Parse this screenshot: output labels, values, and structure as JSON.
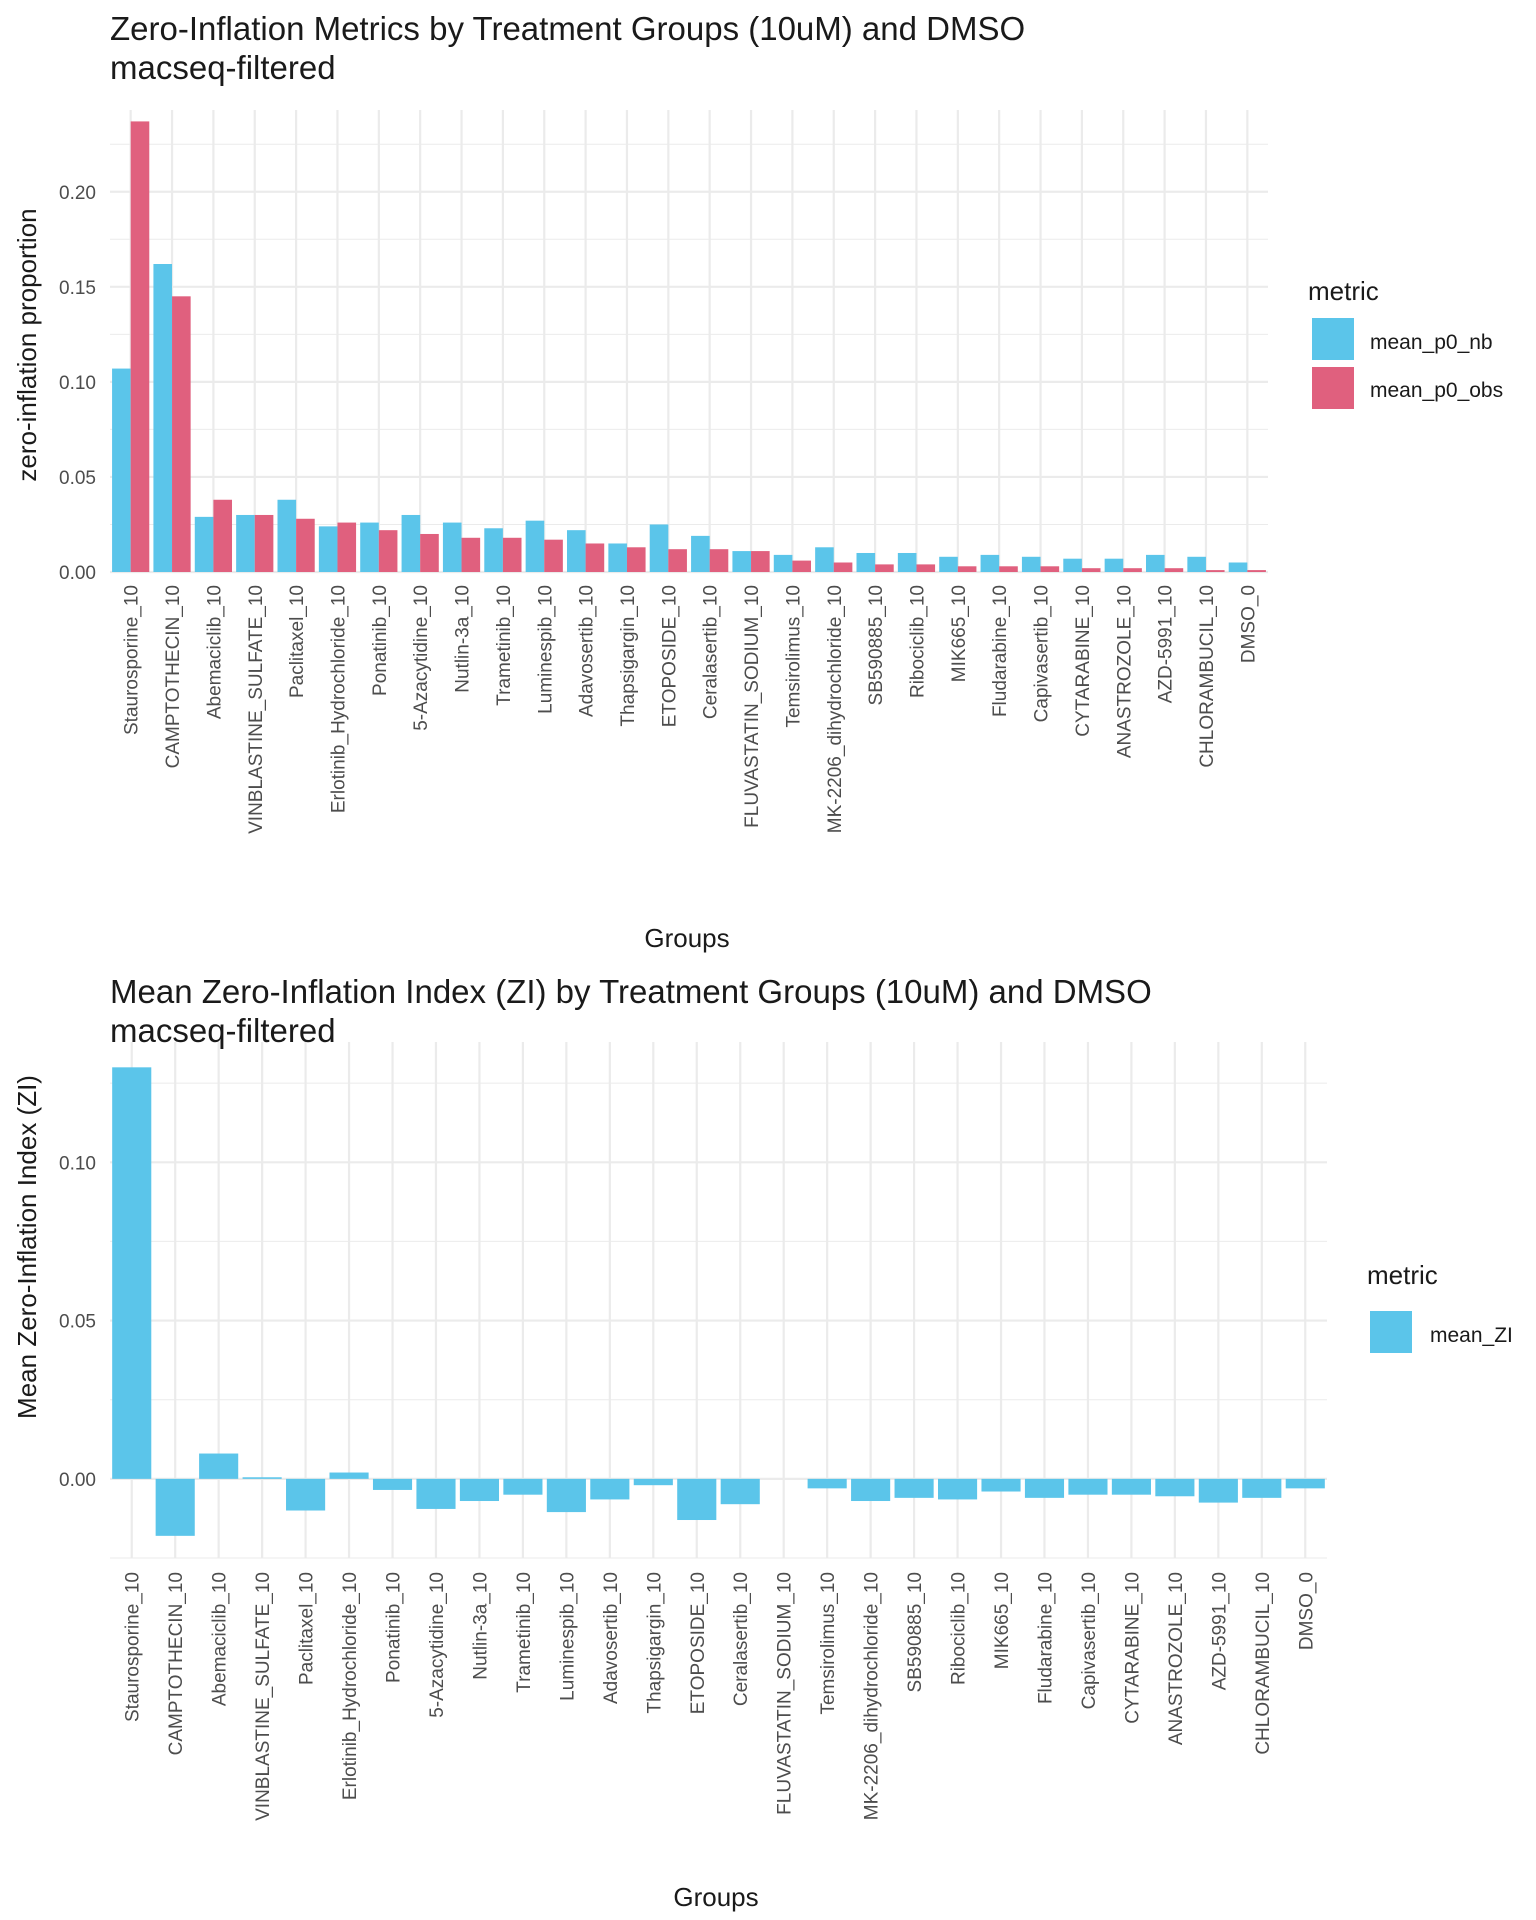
{
  "colors": {
    "blue": "#5BC5EA",
    "pink": "#E0607E",
    "grid": "#EBEBEB",
    "text": "#1a1a1a",
    "tick": "#4d4d4d"
  },
  "chart_data": [
    {
      "type": "bar",
      "title": "Zero-Inflation Metrics by Treatment Groups (10uM) and DMSO",
      "subtitle": "macseq-filtered",
      "xlabel": "Groups",
      "ylabel": "zero-inflation proportion",
      "ylim": [
        0,
        0.243
      ],
      "yticks": [
        0.0,
        0.05,
        0.1,
        0.15,
        0.2
      ],
      "ytick_labels": [
        "0.00",
        "0.05",
        "0.10",
        "0.15",
        "0.20"
      ],
      "grid": true,
      "legend": {
        "title": "metric",
        "position": "right",
        "labels": [
          "mean_p0_nb",
          "mean_p0_obs"
        ]
      },
      "categories": [
        "Staurosporine_10",
        "CAMPTOTHECIN_10",
        "Abemaciclib_10",
        "VINBLASTINE_SULFATE_10",
        "Paclitaxel_10",
        "Erlotinib_Hydrochloride_10",
        "Ponatinib_10",
        "5-Azacytidine_10",
        "Nutlin-3a_10",
        "Trametinib_10",
        "Luminespib_10",
        "Adavosertib_10",
        "Thapsigargin_10",
        "ETOPOSIDE_10",
        "Ceralasertib_10",
        "FLUVASTATIN_SODIUM_10",
        "Temsirolimus_10",
        "MK-2206_dihydrochloride_10",
        "SB590885_10",
        "Ribociclib_10",
        "MIK665_10",
        "Fludarabine_10",
        "Capivasertib_10",
        "CYTARABINE_10",
        "ANASTROZOLE_10",
        "AZD-5991_10",
        "CHLORAMBUCIL_10",
        "DMSO_0"
      ],
      "series": [
        {
          "name": "mean_p0_nb",
          "values": [
            0.107,
            0.162,
            0.029,
            0.03,
            0.038,
            0.024,
            0.026,
            0.03,
            0.026,
            0.023,
            0.027,
            0.022,
            0.015,
            0.025,
            0.019,
            0.011,
            0.009,
            0.013,
            0.01,
            0.01,
            0.008,
            0.009,
            0.008,
            0.007,
            0.007,
            0.009,
            0.008,
            0.005
          ]
        },
        {
          "name": "mean_p0_obs",
          "values": [
            0.237,
            0.145,
            0.038,
            0.03,
            0.028,
            0.026,
            0.022,
            0.02,
            0.018,
            0.018,
            0.017,
            0.015,
            0.013,
            0.012,
            0.012,
            0.011,
            0.006,
            0.005,
            0.004,
            0.004,
            0.003,
            0.003,
            0.003,
            0.002,
            0.002,
            0.002,
            0.001,
            0.001
          ]
        }
      ]
    },
    {
      "type": "bar",
      "title": "Mean Zero-Inflation Index (ZI) by Treatment Groups (10uM) and DMSO",
      "subtitle": "macseq-filtered",
      "xlabel": "Groups",
      "ylabel": "Mean Zero-Inflation Index (ZI)",
      "ylim": [
        -0.025,
        0.138
      ],
      "yticks": [
        0.0,
        0.05,
        0.1
      ],
      "ytick_labels": [
        "0.00",
        "0.05",
        "0.10"
      ],
      "grid": true,
      "legend": {
        "title": "metric",
        "position": "right",
        "labels": [
          "mean_ZI"
        ]
      },
      "categories": [
        "Staurosporine_10",
        "CAMPTOTHECIN_10",
        "Abemaciclib_10",
        "VINBLASTINE_SULFATE_10",
        "Paclitaxel_10",
        "Erlotinib_Hydrochloride_10",
        "Ponatinib_10",
        "5-Azacytidine_10",
        "Nutlin-3a_10",
        "Trametinib_10",
        "Luminespib_10",
        "Adavosertib_10",
        "Thapsigargin_10",
        "ETOPOSIDE_10",
        "Ceralasertib_10",
        "FLUVASTATIN_SODIUM_10",
        "Temsirolimus_10",
        "MK-2206_dihydrochloride_10",
        "SB590885_10",
        "Ribociclib_10",
        "MIK665_10",
        "Fludarabine_10",
        "Capivasertib_10",
        "CYTARABINE_10",
        "ANASTROZOLE_10",
        "AZD-5991_10",
        "CHLORAMBUCIL_10",
        "DMSO_0"
      ],
      "series": [
        {
          "name": "mean_ZI",
          "values": [
            0.13,
            -0.018,
            0.008,
            0.0005,
            -0.01,
            0.002,
            -0.0035,
            -0.0095,
            -0.007,
            -0.005,
            -0.0105,
            -0.0065,
            -0.002,
            -0.013,
            -0.008,
            0.0,
            -0.003,
            -0.007,
            -0.006,
            -0.0065,
            -0.004,
            -0.006,
            -0.005,
            -0.005,
            -0.0055,
            -0.0075,
            -0.006,
            -0.003
          ]
        }
      ]
    }
  ]
}
